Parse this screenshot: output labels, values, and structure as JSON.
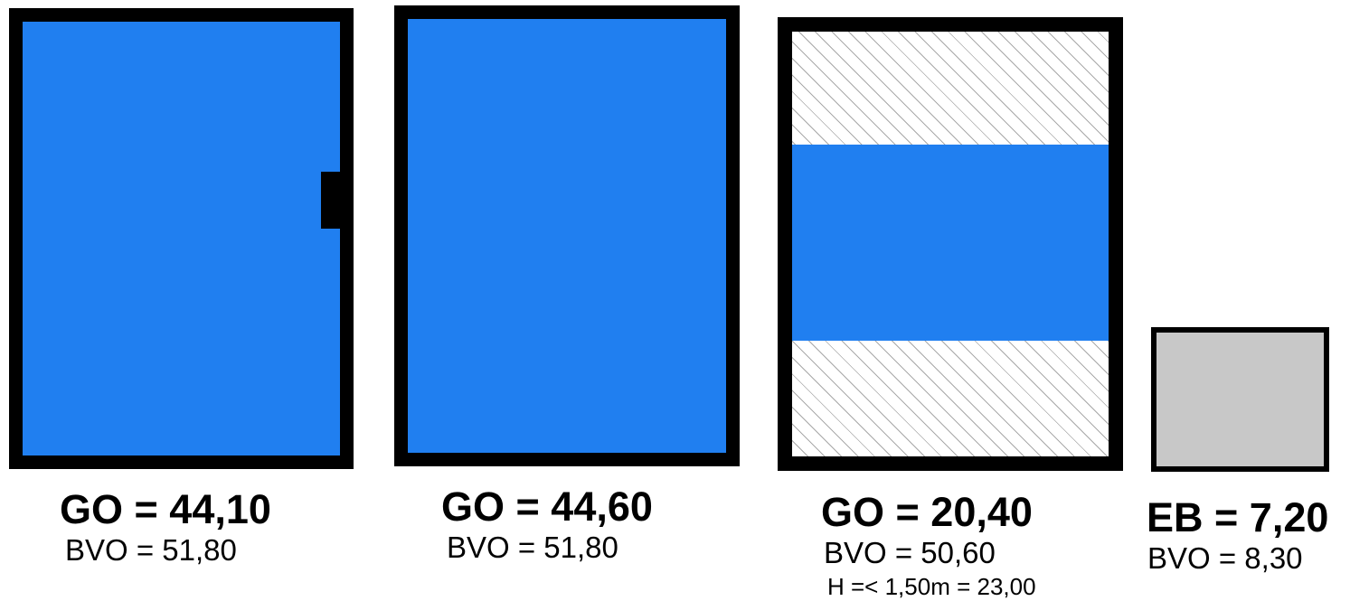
{
  "rooms": [
    {
      "go_label": "GO = 44,10",
      "bvo_label": "BVO = 51,80",
      "fill_color": "#207ff0"
    },
    {
      "go_label": "GO = 44,60",
      "bvo_label": "BVO = 51,80",
      "fill_color": "#207ff0"
    },
    {
      "go_label": "GO = 20,40",
      "bvo_label": "BVO = 50,60",
      "height_note": "H =< 1,50m = 23,00",
      "fill_color": "#207ff0",
      "hatch_color": "#a9a9a9"
    },
    {
      "eb_label": "EB = 7,20",
      "bvo_label": "BVO = 8,30",
      "fill_color": "#c8c8c8"
    }
  ],
  "colors": {
    "wall": "#000000",
    "usable_area": "#207ff0",
    "outbuilding": "#c8c8c8",
    "low_height_hatch": "#a9a9a9"
  }
}
